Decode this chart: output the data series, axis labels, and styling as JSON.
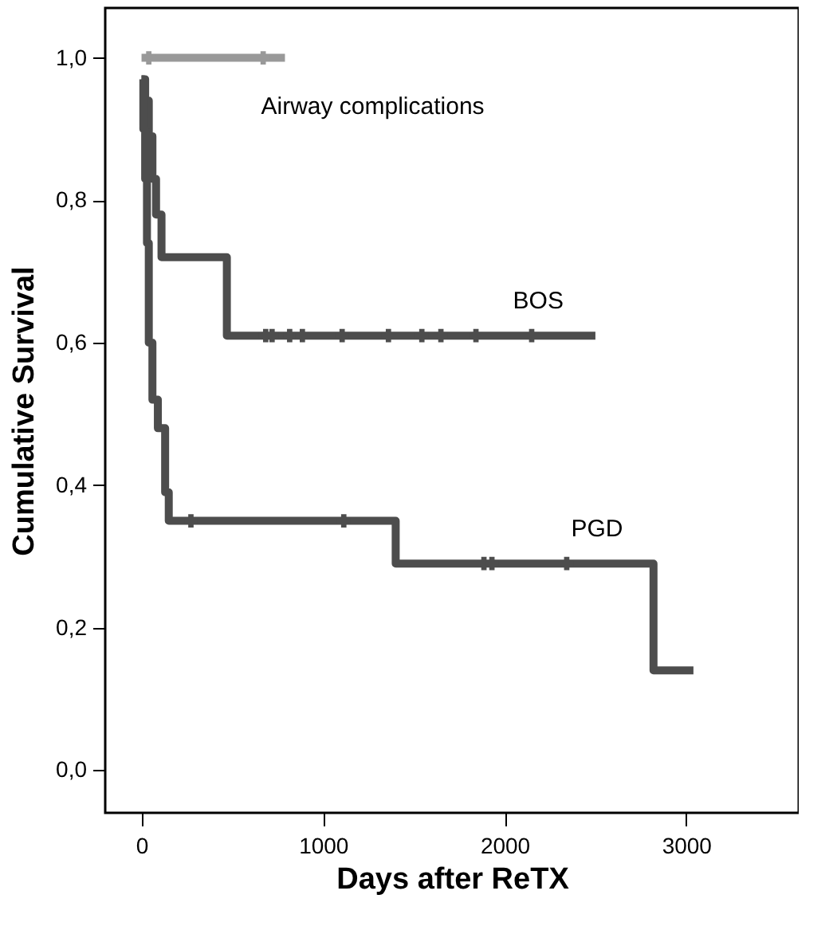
{
  "chart_data": {
    "type": "step",
    "xlabel": "Days after ReTX",
    "ylabel": "Cumulative Survival",
    "xlim": [
      -200,
      3620
    ],
    "ylim": [
      -0.06,
      1.07
    ],
    "xticks": [
      0,
      1000,
      2000,
      3000
    ],
    "yticks": [
      {
        "value": 0,
        "label": "0,0"
      },
      {
        "value": 0.2,
        "label": "0,2"
      },
      {
        "value": 0.4,
        "label": "0,4"
      },
      {
        "value": 0.6,
        "label": "0,6"
      },
      {
        "value": 0.8,
        "label": "0,8"
      },
      {
        "value": 1.0,
        "label": "1,0"
      }
    ],
    "grid": false,
    "line_style": "solid",
    "series": [
      {
        "name": "Airway complications",
        "color": "#999999",
        "x": [
          0,
          790
        ],
        "values": [
          1.0,
          1.0
        ]
      },
      {
        "name": "BOS",
        "color": "#4d4d4d",
        "x": [
          0,
          20,
          40,
          60,
          80,
          110,
          470,
          2500
        ],
        "values": [
          0.97,
          0.94,
          0.89,
          0.83,
          0.78,
          0.72,
          0.61,
          0.61
        ]
      },
      {
        "name": "PGD",
        "color": "#4d4d4d",
        "x": [
          0,
          10,
          20,
          30,
          40,
          60,
          90,
          130,
          150,
          1400,
          2820,
          3040
        ],
        "values": [
          0.97,
          0.9,
          0.83,
          0.74,
          0.6,
          0.52,
          0.48,
          0.39,
          0.35,
          0.29,
          0.14,
          0.14
        ]
      },
      {
        "type": "scatter",
        "marker": "cross",
        "color": "#999999",
        "x": [
          40,
          670
        ],
        "values": [
          1.0,
          1.0
        ]
      },
      {
        "type": "scatter",
        "marker": "cross",
        "color": "#4d4d4d",
        "x": [
          684,
          719,
          816,
          886,
          1105,
          1360,
          1544,
          1649,
          1842,
          2149
        ],
        "values": [
          0.61,
          0.61,
          0.61,
          0.61,
          0.61,
          0.61,
          0.61,
          0.61,
          0.61,
          0.61
        ]
      },
      {
        "type": "scatter",
        "marker": "cross",
        "color": "#4d4d4d",
        "x": [
          272,
          1114,
          1886,
          1930,
          2342
        ],
        "values": [
          0.35,
          0.35,
          0.29,
          0.29,
          0.29
        ]
      }
    ]
  }
}
